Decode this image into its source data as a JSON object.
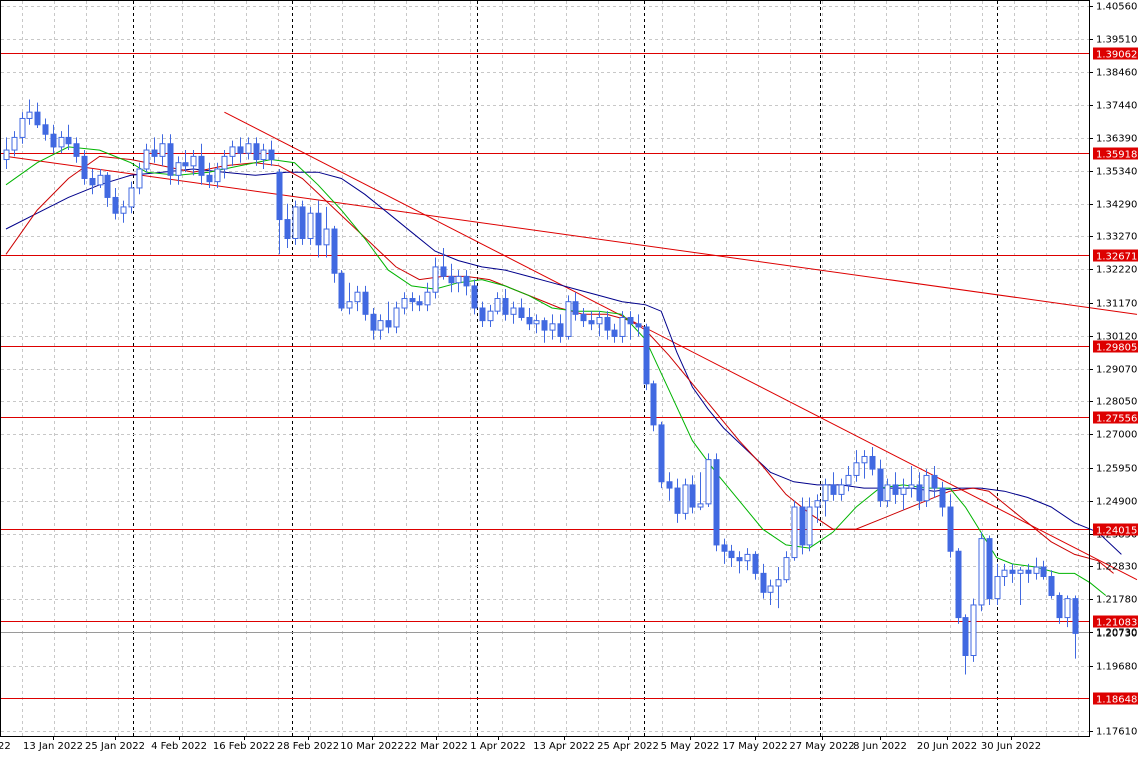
{
  "chart_data": {
    "type": "candlestick",
    "title": "",
    "xlabel": "",
    "ylabel": "",
    "ylim": [
      1.1761,
      1.4056
    ],
    "grid": true,
    "y_ticks": [
      "1.40560",
      "1.39510",
      "1.38460",
      "1.37440",
      "1.36390",
      "1.35340",
      "1.34290",
      "1.33270",
      "1.32220",
      "1.31170",
      "1.30120",
      "1.29070",
      "1.28050",
      "1.27000",
      "1.25950",
      "1.24900",
      "1.23850",
      "1.22830",
      "1.21780",
      "1.20730",
      "1.19680",
      "1.17610"
    ],
    "x_ticks": [
      "22",
      "13 Jan 2022",
      "25 Jan 2022",
      "4 Feb 2022",
      "16 Feb 2022",
      "28 Feb 2022",
      "10 Mar 2022",
      "22 Mar 2022",
      "1 Apr 2022",
      "13 Apr 2022",
      "25 Apr 2022",
      "5 May 2022",
      "17 May 2022",
      "27 May 2022",
      "8 Jun 2022",
      "20 Jun 2022",
      "30 Jun 2022"
    ],
    "price_levels": [
      "1.39062",
      "1.35918",
      "1.32671",
      "1.29805",
      "1.27556",
      "1.24015",
      "1.21083",
      "1.18648"
    ],
    "current_price": "1.20730",
    "colors": {
      "bull": "#4169e1",
      "bear": "#4169e1",
      "ma_fast": "#00b400",
      "ma_mid": "#cc0000",
      "ma_slow": "#00008b",
      "level": "#dd0000"
    },
    "candles": [
      [
        1.357,
        1.364,
        1.354,
        1.36
      ],
      [
        1.36,
        1.366,
        1.358,
        1.364
      ],
      [
        1.364,
        1.372,
        1.362,
        1.37
      ],
      [
        1.37,
        1.376,
        1.368,
        1.372
      ],
      [
        1.372,
        1.375,
        1.367,
        1.368
      ],
      [
        1.368,
        1.37,
        1.363,
        1.365
      ],
      [
        1.365,
        1.368,
        1.359,
        1.361
      ],
      [
        1.361,
        1.366,
        1.359,
        1.364
      ],
      [
        1.364,
        1.368,
        1.36,
        1.362
      ],
      [
        1.362,
        1.364,
        1.356,
        1.358
      ],
      [
        1.358,
        1.36,
        1.349,
        1.351
      ],
      [
        1.351,
        1.354,
        1.346,
        1.349
      ],
      [
        1.349,
        1.354,
        1.348,
        1.352
      ],
      [
        1.352,
        1.353,
        1.342,
        1.345
      ],
      [
        1.345,
        1.348,
        1.338,
        1.34
      ],
      [
        1.34,
        1.344,
        1.337,
        1.342
      ],
      [
        1.342,
        1.35,
        1.34,
        1.348
      ],
      [
        1.348,
        1.356,
        1.346,
        1.354
      ],
      [
        1.354,
        1.362,
        1.353,
        1.36
      ],
      [
        1.36,
        1.364,
        1.356,
        1.358
      ],
      [
        1.358,
        1.365,
        1.355,
        1.362
      ],
      [
        1.362,
        1.365,
        1.349,
        1.352
      ],
      [
        1.352,
        1.358,
        1.349,
        1.356
      ],
      [
        1.356,
        1.36,
        1.353,
        1.355
      ],
      [
        1.355,
        1.36,
        1.352,
        1.358
      ],
      [
        1.358,
        1.362,
        1.349,
        1.352
      ],
      [
        1.352,
        1.356,
        1.348,
        1.35
      ],
      [
        1.35,
        1.356,
        1.348,
        1.354
      ],
      [
        1.354,
        1.36,
        1.351,
        1.358
      ],
      [
        1.358,
        1.363,
        1.355,
        1.361
      ],
      [
        1.361,
        1.364,
        1.356,
        1.359
      ],
      [
        1.359,
        1.364,
        1.357,
        1.362
      ],
      [
        1.362,
        1.364,
        1.355,
        1.357
      ],
      [
        1.357,
        1.362,
        1.354,
        1.36
      ],
      [
        1.36,
        1.363,
        1.355,
        1.357
      ],
      [
        1.353,
        1.354,
        1.327,
        1.338
      ],
      [
        1.338,
        1.343,
        1.329,
        1.332
      ],
      [
        1.332,
        1.344,
        1.33,
        1.342
      ],
      [
        1.342,
        1.344,
        1.33,
        1.332
      ],
      [
        1.332,
        1.342,
        1.33,
        1.34
      ],
      [
        1.34,
        1.344,
        1.326,
        1.33
      ],
      [
        1.33,
        1.342,
        1.326,
        1.335
      ],
      [
        1.335,
        1.336,
        1.318,
        1.321
      ],
      [
        1.321,
        1.322,
        1.309,
        1.31
      ],
      [
        1.31,
        1.318,
        1.308,
        1.312
      ],
      [
        1.312,
        1.317,
        1.309,
        1.315
      ],
      [
        1.315,
        1.317,
        1.306,
        1.308
      ],
      [
        1.308,
        1.31,
        1.3,
        1.303
      ],
      [
        1.303,
        1.308,
        1.3,
        1.306
      ],
      [
        1.306,
        1.312,
        1.302,
        1.304
      ],
      [
        1.304,
        1.312,
        1.302,
        1.31
      ],
      [
        1.31,
        1.315,
        1.308,
        1.313
      ],
      [
        1.313,
        1.315,
        1.309,
        1.312
      ],
      [
        1.312,
        1.314,
        1.309,
        1.311
      ],
      [
        1.311,
        1.318,
        1.309,
        1.315
      ],
      [
        1.315,
        1.326,
        1.313,
        1.323
      ],
      [
        1.323,
        1.329,
        1.319,
        1.32
      ],
      [
        1.32,
        1.324,
        1.315,
        1.318
      ],
      [
        1.318,
        1.322,
        1.315,
        1.32
      ],
      [
        1.32,
        1.322,
        1.314,
        1.317
      ],
      [
        1.317,
        1.319,
        1.308,
        1.31
      ],
      [
        1.31,
        1.312,
        1.304,
        1.306
      ],
      [
        1.306,
        1.311,
        1.304,
        1.309
      ],
      [
        1.309,
        1.315,
        1.308,
        1.313
      ],
      [
        1.313,
        1.316,
        1.306,
        1.308
      ],
      [
        1.308,
        1.312,
        1.305,
        1.31
      ],
      [
        1.31,
        1.313,
        1.306,
        1.307
      ],
      [
        1.307,
        1.31,
        1.303,
        1.305
      ],
      [
        1.305,
        1.308,
        1.302,
        1.306
      ],
      [
        1.306,
        1.307,
        1.299,
        1.303
      ],
      [
        1.303,
        1.308,
        1.3,
        1.305
      ],
      [
        1.305,
        1.308,
        1.299,
        1.301
      ],
      [
        1.301,
        1.314,
        1.3,
        1.312
      ],
      [
        1.312,
        1.315,
        1.306,
        1.308
      ],
      [
        1.308,
        1.31,
        1.304,
        1.306
      ],
      [
        1.306,
        1.309,
        1.303,
        1.305
      ],
      [
        1.305,
        1.309,
        1.301,
        1.307
      ],
      [
        1.307,
        1.309,
        1.3,
        1.303
      ],
      [
        1.303,
        1.305,
        1.299,
        1.301
      ],
      [
        1.301,
        1.309,
        1.299,
        1.307
      ],
      [
        1.307,
        1.309,
        1.3,
        1.305
      ],
      [
        1.305,
        1.308,
        1.301,
        1.304
      ],
      [
        1.304,
        1.305,
        1.284,
        1.286
      ],
      [
        1.286,
        1.287,
        1.271,
        1.273
      ],
      [
        1.273,
        1.274,
        1.253,
        1.255
      ],
      [
        1.255,
        1.258,
        1.249,
        1.253
      ],
      [
        1.253,
        1.256,
        1.242,
        1.245
      ],
      [
        1.245,
        1.256,
        1.243,
        1.254
      ],
      [
        1.254,
        1.257,
        1.245,
        1.247
      ],
      [
        1.247,
        1.258,
        1.246,
        1.248
      ],
      [
        1.248,
        1.264,
        1.247,
        1.262
      ],
      [
        1.262,
        1.264,
        1.233,
        1.235
      ],
      [
        1.235,
        1.237,
        1.229,
        1.233
      ],
      [
        1.233,
        1.235,
        1.228,
        1.231
      ],
      [
        1.231,
        1.233,
        1.226,
        1.23
      ],
      [
        1.23,
        1.234,
        1.227,
        1.232
      ],
      [
        1.232,
        1.233,
        1.224,
        1.226
      ],
      [
        1.226,
        1.229,
        1.218,
        1.22
      ],
      [
        1.22,
        1.224,
        1.216,
        1.222
      ],
      [
        1.222,
        1.228,
        1.215,
        1.224
      ],
      [
        1.224,
        1.233,
        1.223,
        1.231
      ],
      [
        1.231,
        1.249,
        1.23,
        1.247
      ],
      [
        1.247,
        1.25,
        1.232,
        1.235
      ],
      [
        1.235,
        1.25,
        1.233,
        1.247
      ],
      [
        1.247,
        1.251,
        1.242,
        1.249
      ],
      [
        1.249,
        1.256,
        1.244,
        1.254
      ],
      [
        1.254,
        1.258,
        1.249,
        1.251
      ],
      [
        1.251,
        1.256,
        1.249,
        1.254
      ],
      [
        1.254,
        1.26,
        1.252,
        1.257
      ],
      [
        1.257,
        1.265,
        1.255,
        1.261
      ],
      [
        1.261,
        1.265,
        1.256,
        1.263
      ],
      [
        1.263,
        1.266,
        1.257,
        1.259
      ],
      [
        1.259,
        1.262,
        1.247,
        1.249
      ],
      [
        1.249,
        1.256,
        1.247,
        1.254
      ],
      [
        1.254,
        1.258,
        1.248,
        1.251
      ],
      [
        1.251,
        1.256,
        1.246,
        1.253
      ],
      [
        1.253,
        1.26,
        1.25,
        1.254
      ],
      [
        1.254,
        1.258,
        1.246,
        1.249
      ],
      [
        1.249,
        1.259,
        1.247,
        1.257
      ],
      [
        1.257,
        1.26,
        1.25,
        1.253
      ],
      [
        1.253,
        1.255,
        1.244,
        1.247
      ],
      [
        1.247,
        1.251,
        1.231,
        1.233
      ],
      [
        1.233,
        1.234,
        1.21,
        1.212
      ],
      [
        1.212,
        1.213,
        1.194,
        1.2
      ],
      [
        1.2,
        1.218,
        1.198,
        1.216
      ],
      [
        1.216,
        1.239,
        1.214,
        1.237
      ],
      [
        1.237,
        1.238,
        1.216,
        1.218
      ],
      [
        1.218,
        1.229,
        1.216,
        1.225
      ],
      [
        1.225,
        1.229,
        1.222,
        1.227
      ],
      [
        1.227,
        1.229,
        1.223,
        1.226
      ],
      [
        1.226,
        1.228,
        1.216,
        1.227
      ],
      [
        1.227,
        1.229,
        1.223,
        1.226
      ],
      [
        1.226,
        1.231,
        1.224,
        1.228
      ],
      [
        1.228,
        1.23,
        1.224,
        1.225
      ],
      [
        1.225,
        1.227,
        1.218,
        1.219
      ],
      [
        1.219,
        1.22,
        1.21,
        1.212
      ],
      [
        1.212,
        1.219,
        1.209,
        1.218
      ],
      [
        1.218,
        1.219,
        1.199,
        1.207
      ]
    ],
    "ma_fast": [
      [
        0,
        1.349
      ],
      [
        4,
        1.356
      ],
      [
        8,
        1.361
      ],
      [
        12,
        1.36
      ],
      [
        16,
        1.356
      ],
      [
        18,
        1.353
      ],
      [
        22,
        1.352
      ],
      [
        26,
        1.353
      ],
      [
        30,
        1.355
      ],
      [
        34,
        1.357
      ],
      [
        37,
        1.356
      ],
      [
        40,
        1.349
      ],
      [
        43,
        1.341
      ],
      [
        46,
        1.332
      ],
      [
        49,
        1.322
      ],
      [
        52,
        1.317
      ],
      [
        55,
        1.316
      ],
      [
        58,
        1.318
      ],
      [
        61,
        1.319
      ],
      [
        64,
        1.317
      ],
      [
        67,
        1.314
      ],
      [
        70,
        1.31
      ],
      [
        73,
        1.309
      ],
      [
        76,
        1.309
      ],
      [
        79,
        1.308
      ],
      [
        82,
        1.3
      ],
      [
        85,
        1.284
      ],
      [
        88,
        1.268
      ],
      [
        91,
        1.258
      ],
      [
        94,
        1.249
      ],
      [
        97,
        1.24
      ],
      [
        100,
        1.235
      ],
      [
        103,
        1.234
      ],
      [
        106,
        1.239
      ],
      [
        109,
        1.247
      ],
      [
        112,
        1.253
      ],
      [
        115,
        1.254
      ],
      [
        118,
        1.253
      ],
      [
        121,
        1.253
      ],
      [
        123,
        1.247
      ],
      [
        125,
        1.239
      ],
      [
        127,
        1.231
      ],
      [
        129,
        1.229
      ],
      [
        132,
        1.228
      ],
      [
        135,
        1.226
      ],
      [
        137,
        1.226
      ],
      [
        139,
        1.223
      ],
      [
        141,
        1.219
      ]
    ],
    "ma_mid": [
      [
        0,
        1.327
      ],
      [
        4,
        1.341
      ],
      [
        8,
        1.351
      ],
      [
        12,
        1.358
      ],
      [
        16,
        1.357
      ],
      [
        20,
        1.355
      ],
      [
        24,
        1.353
      ],
      [
        28,
        1.355
      ],
      [
        32,
        1.356
      ],
      [
        35,
        1.355
      ],
      [
        38,
        1.351
      ],
      [
        41,
        1.344
      ],
      [
        44,
        1.337
      ],
      [
        47,
        1.33
      ],
      [
        50,
        1.323
      ],
      [
        53,
        1.319
      ],
      [
        56,
        1.32
      ],
      [
        59,
        1.32
      ],
      [
        62,
        1.319
      ],
      [
        65,
        1.316
      ],
      [
        68,
        1.313
      ],
      [
        71,
        1.31
      ],
      [
        74,
        1.308
      ],
      [
        77,
        1.308
      ],
      [
        80,
        1.306
      ],
      [
        82,
        1.303
      ],
      [
        85,
        1.295
      ],
      [
        88,
        1.286
      ],
      [
        91,
        1.277
      ],
      [
        94,
        1.268
      ],
      [
        97,
        1.26
      ],
      [
        100,
        1.251
      ],
      [
        103,
        1.245
      ],
      [
        106,
        1.24
      ],
      [
        109,
        1.24
      ],
      [
        112,
        1.243
      ],
      [
        115,
        1.246
      ],
      [
        118,
        1.249
      ],
      [
        121,
        1.252
      ],
      [
        124,
        1.253
      ],
      [
        126,
        1.252
      ],
      [
        128,
        1.248
      ],
      [
        131,
        1.242
      ],
      [
        134,
        1.236
      ],
      [
        137,
        1.232
      ],
      [
        140,
        1.23
      ],
      [
        142,
        1.226
      ]
    ],
    "ma_slow": [
      [
        0,
        1.335
      ],
      [
        4,
        1.34
      ],
      [
        8,
        1.345
      ],
      [
        12,
        1.349
      ],
      [
        16,
        1.352
      ],
      [
        20,
        1.353
      ],
      [
        24,
        1.354
      ],
      [
        28,
        1.353
      ],
      [
        32,
        1.352
      ],
      [
        36,
        1.353
      ],
      [
        40,
        1.353
      ],
      [
        43,
        1.351
      ],
      [
        46,
        1.346
      ],
      [
        49,
        1.34
      ],
      [
        52,
        1.334
      ],
      [
        55,
        1.328
      ],
      [
        58,
        1.325
      ],
      [
        61,
        1.323
      ],
      [
        64,
        1.322
      ],
      [
        67,
        1.32
      ],
      [
        70,
        1.318
      ],
      [
        73,
        1.316
      ],
      [
        76,
        1.314
      ],
      [
        79,
        1.312
      ],
      [
        82,
        1.311
      ],
      [
        84,
        1.309
      ],
      [
        86,
        1.296
      ],
      [
        88,
        1.285
      ],
      [
        90,
        1.278
      ],
      [
        92,
        1.272
      ],
      [
        95,
        1.265
      ],
      [
        98,
        1.258
      ],
      [
        101,
        1.255
      ],
      [
        104,
        1.254
      ],
      [
        107,
        1.254
      ],
      [
        110,
        1.253
      ],
      [
        113,
        1.253
      ],
      [
        116,
        1.253
      ],
      [
        119,
        1.252
      ],
      [
        122,
        1.253
      ],
      [
        125,
        1.253
      ],
      [
        128,
        1.252
      ],
      [
        131,
        1.25
      ],
      [
        134,
        1.247
      ],
      [
        137,
        1.242
      ],
      [
        140,
        1.239
      ],
      [
        143,
        1.232
      ]
    ],
    "trendlines": [
      [
        [
          0,
          1.358
        ],
        [
          145,
          1.308
        ]
      ],
      [
        [
          28,
          1.372
        ],
        [
          145,
          1.224
        ]
      ]
    ]
  }
}
